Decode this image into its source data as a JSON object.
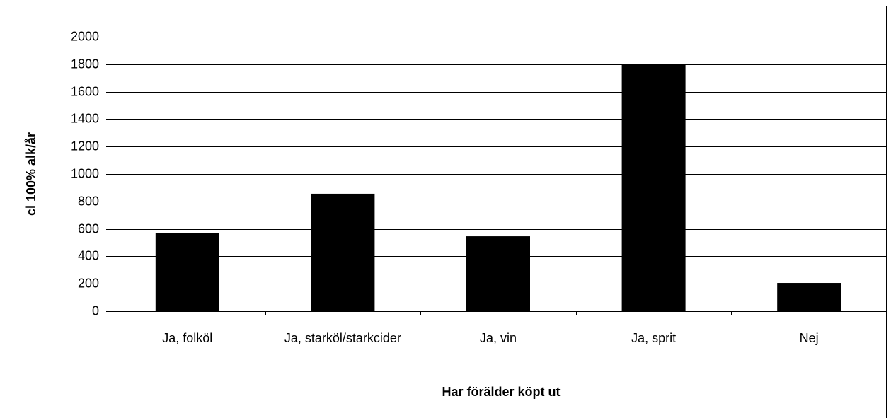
{
  "chart_data": {
    "type": "bar",
    "x_label": "Har förälder köpt ut",
    "y_label": "cl 100% alk/år",
    "categories": [
      "Ja, folköl",
      "Ja, starköl/starkcider",
      "Ja, vin",
      "Ja, sprit",
      "Nej"
    ],
    "values": [
      567,
      856,
      546,
      1794,
      206
    ],
    "color": "#000000",
    "ylim": [
      0,
      2000
    ],
    "yticks": [
      0,
      200,
      400,
      600,
      800,
      1000,
      1200,
      1400,
      1600,
      1800,
      2000
    ],
    "grid": true
  }
}
